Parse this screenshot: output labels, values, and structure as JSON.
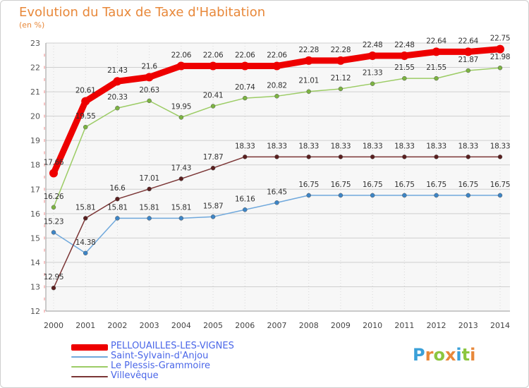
{
  "title": "Evolution du Taux de Taxe d'Habitation",
  "subtitle": "(en %)",
  "logo": {
    "text": "Proxiti",
    "letters": [
      {
        "ch": "P",
        "color": "#3aa0d8"
      },
      {
        "ch": "r",
        "color": "#e8883a"
      },
      {
        "ch": "o",
        "color": "#8cc63f"
      },
      {
        "ch": "x",
        "color": "#e8883a"
      },
      {
        "ch": "i",
        "color": "#3aa0d8"
      },
      {
        "ch": "t",
        "color": "#8cc63f"
      },
      {
        "ch": "i",
        "color": "#e8883a"
      }
    ]
  },
  "chart_data": {
    "type": "line",
    "title": "Evolution du Taux de Taxe d'Habitation",
    "subtitle": "(en %)",
    "x": [
      2000,
      2001,
      2002,
      2003,
      2004,
      2005,
      2006,
      2007,
      2008,
      2009,
      2010,
      2011,
      2012,
      2013,
      2014
    ],
    "ylim": [
      12,
      23
    ],
    "yticks": [
      12,
      13,
      14,
      15,
      16,
      17,
      18,
      19,
      20,
      21,
      22,
      23
    ],
    "grid": true,
    "legend_position": "bottom-left",
    "series": [
      {
        "name": "PELLOUAILLES-LES-VIGNES",
        "color": "#ee0000",
        "point_color": "#ee0000",
        "values": [
          17.66,
          20.61,
          21.43,
          21.6,
          22.06,
          22.06,
          22.06,
          22.06,
          22.28,
          22.28,
          22.48,
          22.48,
          22.64,
          22.64,
          22.75
        ],
        "labels": [
          "17.66",
          "20.61",
          "21.43",
          "21.6",
          "22.06",
          "22.06",
          "22.06",
          "22.06",
          "22.28",
          "22.28",
          "22.48",
          "22.48",
          "22.64",
          "22.64",
          "22.75"
        ]
      },
      {
        "name": "Saint-Sylvain-d'Anjou",
        "color": "#6fa8dc",
        "point_color": "#3d85c6",
        "values": [
          15.23,
          14.38,
          15.81,
          15.81,
          15.81,
          15.87,
          16.16,
          16.45,
          16.75,
          16.75,
          16.75,
          16.75,
          16.75,
          16.75,
          16.75
        ],
        "labels": [
          "15.23",
          "14.38",
          "15.81",
          "15.81",
          "15.81",
          "15.87",
          "16.16",
          "16.45",
          "16.75",
          "16.75",
          "16.75",
          "16.75",
          "16.75",
          "16.75",
          "16.75"
        ]
      },
      {
        "name": "Le Plessis-Grammoire",
        "color": "#9ccc65",
        "point_color": "#7cb342",
        "values": [
          16.26,
          19.55,
          20.33,
          20.63,
          19.95,
          20.41,
          20.74,
          20.82,
          21.01,
          21.12,
          21.33,
          21.55,
          21.55,
          21.87,
          21.98
        ],
        "labels": [
          "16.26",
          "19.55",
          "20.33",
          "20.63",
          "19.95",
          "20.41",
          "20.74",
          "20.82",
          "21.01",
          "21.12",
          "21.33",
          "21.55",
          "21.55",
          "21.87",
          "21.98"
        ]
      },
      {
        "name": "Villevêque",
        "color": "#7b3535",
        "point_color": "#5a1f1f",
        "values": [
          12.95,
          15.81,
          16.6,
          17.01,
          17.43,
          17.87,
          18.33,
          18.33,
          18.33,
          18.33,
          18.33,
          18.33,
          18.33,
          18.33,
          18.33
        ],
        "labels": [
          "12.95",
          "15.81",
          "16.6",
          "17.01",
          "17.43",
          "17.87",
          "18.33",
          "18.33",
          "18.33",
          "18.33",
          "18.33",
          "18.33",
          "18.33",
          "18.33",
          "18.33"
        ]
      }
    ]
  }
}
